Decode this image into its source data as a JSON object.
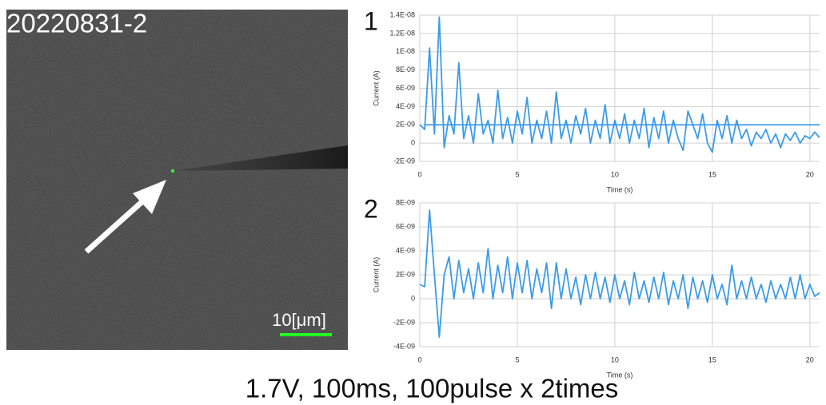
{
  "image": {
    "label": "20220831-2",
    "scale_label": "10[μm]"
  },
  "caption": "1.7V, 100ms, 100pulse x 2times",
  "chart_data": [
    {
      "type": "line",
      "panel_label": "1",
      "xlabel": "Time (s)",
      "ylabel": "Current (A)",
      "grid": true,
      "xlim": [
        0,
        20.5
      ],
      "xticks": [
        0,
        5,
        10,
        15,
        20
      ],
      "ylim": [
        -2e-09,
        1.4e-08
      ],
      "yticks": [
        {
          "value": -2e-09,
          "label": "-2E-09"
        },
        {
          "value": 0,
          "label": "0"
        },
        {
          "value": 2e-09,
          "label": "2E-09"
        },
        {
          "value": 4e-09,
          "label": "4E-09"
        },
        {
          "value": 6e-09,
          "label": "6E-09"
        },
        {
          "value": 8e-09,
          "label": "8E-09"
        },
        {
          "value": 1e-08,
          "label": "1E-08"
        },
        {
          "value": 1.2e-08,
          "label": "1.2E-08"
        },
        {
          "value": 1.4e-08,
          "label": "1.4E-08"
        }
      ],
      "x": [
        0,
        0.25,
        0.5,
        0.75,
        1,
        1.25,
        1.5,
        1.75,
        2,
        2.25,
        2.5,
        2.75,
        3,
        3.25,
        3.5,
        3.75,
        4,
        4.25,
        4.5,
        4.75,
        5,
        5.25,
        5.5,
        5.75,
        6,
        6.25,
        6.5,
        6.75,
        7,
        7.25,
        7.5,
        7.75,
        8,
        8.25,
        8.5,
        8.75,
        9,
        9.25,
        9.5,
        9.75,
        10,
        10.25,
        10.5,
        10.75,
        11,
        11.25,
        11.5,
        11.75,
        12,
        12.25,
        12.5,
        12.75,
        13,
        13.25,
        13.5,
        13.75,
        14,
        14.25,
        14.5,
        14.75,
        15,
        15.25,
        15.5,
        15.75,
        16,
        16.25,
        16.5,
        16.75,
        17,
        17.25,
        17.5,
        17.75,
        18,
        18.25,
        18.5,
        18.75,
        19,
        19.25,
        19.5,
        19.75,
        20,
        20.25,
        20.5
      ],
      "series": [
        {
          "color": "#3c9be8",
          "values": [
            2e-09,
            1.5e-09,
            1.04e-08,
            1e-09,
            1.38e-08,
            -5e-10,
            3e-09,
            1e-09,
            8.8e-09,
            5e-10,
            3e-09,
            0,
            5.4e-09,
            1e-09,
            2.5e-09,
            0,
            5.8e-09,
            5e-10,
            2.8e-09,
            0,
            3.5e-09,
            1e-09,
            5e-09,
            0,
            2.5e-09,
            5e-10,
            3.5e-09,
            0,
            5.6e-09,
            5e-10,
            2.5e-09,
            0,
            3e-09,
            1e-09,
            3.8e-09,
            0,
            2.5e-09,
            5e-10,
            4.2e-09,
            0,
            2.5e-09,
            5e-10,
            3.2e-09,
            0,
            2.5e-09,
            5e-10,
            3.8e-09,
            -5e-10,
            2.8e-09,
            5e-10,
            3.5e-09,
            0,
            2.5e-09,
            5e-10,
            -8e-10,
            3.5e-09,
            2e-09,
            5e-10,
            3.2e-09,
            0,
            -1e-09,
            2.5e-09,
            5e-10,
            3e-09,
            0,
            2.5e-09,
            5e-10,
            1.5e-09,
            -3e-10,
            1.2e-09,
            5e-10,
            1.5e-09,
            0,
            1e-09,
            -5e-10,
            1e-09,
            3e-10,
            1.2e-09,
            0,
            8e-10,
            5e-10,
            1.2e-09,
            6e-10
          ]
        },
        {
          "color": "#3c9be8",
          "x": [
            0.25,
            20.5
          ],
          "values": [
            2e-09,
            2e-09
          ]
        }
      ]
    },
    {
      "type": "line",
      "panel_label": "2",
      "xlabel": "Time (s)",
      "ylabel": "Current (A)",
      "grid": true,
      "xlim": [
        0,
        20.5
      ],
      "xticks": [
        0,
        5,
        10,
        15,
        20
      ],
      "ylim": [
        -4e-09,
        8e-09
      ],
      "yticks": [
        {
          "value": -4e-09,
          "label": "-4E-09"
        },
        {
          "value": -2e-09,
          "label": "-2E-09"
        },
        {
          "value": 0,
          "label": "0"
        },
        {
          "value": 2e-09,
          "label": "2E-09"
        },
        {
          "value": 4e-09,
          "label": "4E-09"
        },
        {
          "value": 6e-09,
          "label": "6E-09"
        },
        {
          "value": 8e-09,
          "label": "8E-09"
        }
      ],
      "x": [
        0,
        0.25,
        0.5,
        0.75,
        1,
        1.25,
        1.5,
        1.75,
        2,
        2.25,
        2.5,
        2.75,
        3,
        3.25,
        3.5,
        3.75,
        4,
        4.25,
        4.5,
        4.75,
        5,
        5.25,
        5.5,
        5.75,
        6,
        6.25,
        6.5,
        6.75,
        7,
        7.25,
        7.5,
        7.75,
        8,
        8.25,
        8.5,
        8.75,
        9,
        9.25,
        9.5,
        9.75,
        10,
        10.25,
        10.5,
        10.75,
        11,
        11.25,
        11.5,
        11.75,
        12,
        12.25,
        12.5,
        12.75,
        13,
        13.25,
        13.5,
        13.75,
        14,
        14.25,
        14.5,
        14.75,
        15,
        15.25,
        15.5,
        15.75,
        16,
        16.25,
        16.5,
        16.75,
        17,
        17.25,
        17.5,
        17.75,
        18,
        18.25,
        18.5,
        18.75,
        19,
        19.25,
        19.5,
        19.75,
        20,
        20.25,
        20.5
      ],
      "series": [
        {
          "color": "#3c9be8",
          "values": [
            1.2e-09,
            1e-09,
            7.4e-09,
            2e-09,
            -3.2e-09,
            2e-09,
            3.5e-09,
            0,
            3.2e-09,
            5e-10,
            2.5e-09,
            0,
            3e-09,
            5e-10,
            4.2e-09,
            0,
            2.8e-09,
            5e-10,
            3.5e-09,
            0,
            3e-09,
            5e-10,
            3.2e-09,
            0,
            2.5e-09,
            5e-10,
            3e-09,
            -8e-10,
            3e-09,
            0,
            2.5e-09,
            0,
            1.8e-09,
            -5e-10,
            2e-09,
            0,
            2.2e-09,
            0,
            1.8e-09,
            -3e-10,
            2e-09,
            0,
            1.5e-09,
            -5e-10,
            2.2e-09,
            0,
            1.5e-09,
            -3e-10,
            1.8e-09,
            0,
            2.2e-09,
            -5e-10,
            1.5e-09,
            0,
            2e-09,
            -8e-10,
            1.8e-09,
            0,
            1.5e-09,
            -3e-10,
            2e-09,
            0,
            1.2e-09,
            -5e-10,
            2.8e-09,
            0,
            1.5e-09,
            0,
            1.8e-09,
            0,
            1.2e-09,
            -3e-10,
            1.5e-09,
            0,
            1.2e-09,
            0,
            1.8e-09,
            0,
            2e-09,
            0,
            1.2e-09,
            2e-10,
            5e-10
          ]
        }
      ]
    }
  ]
}
